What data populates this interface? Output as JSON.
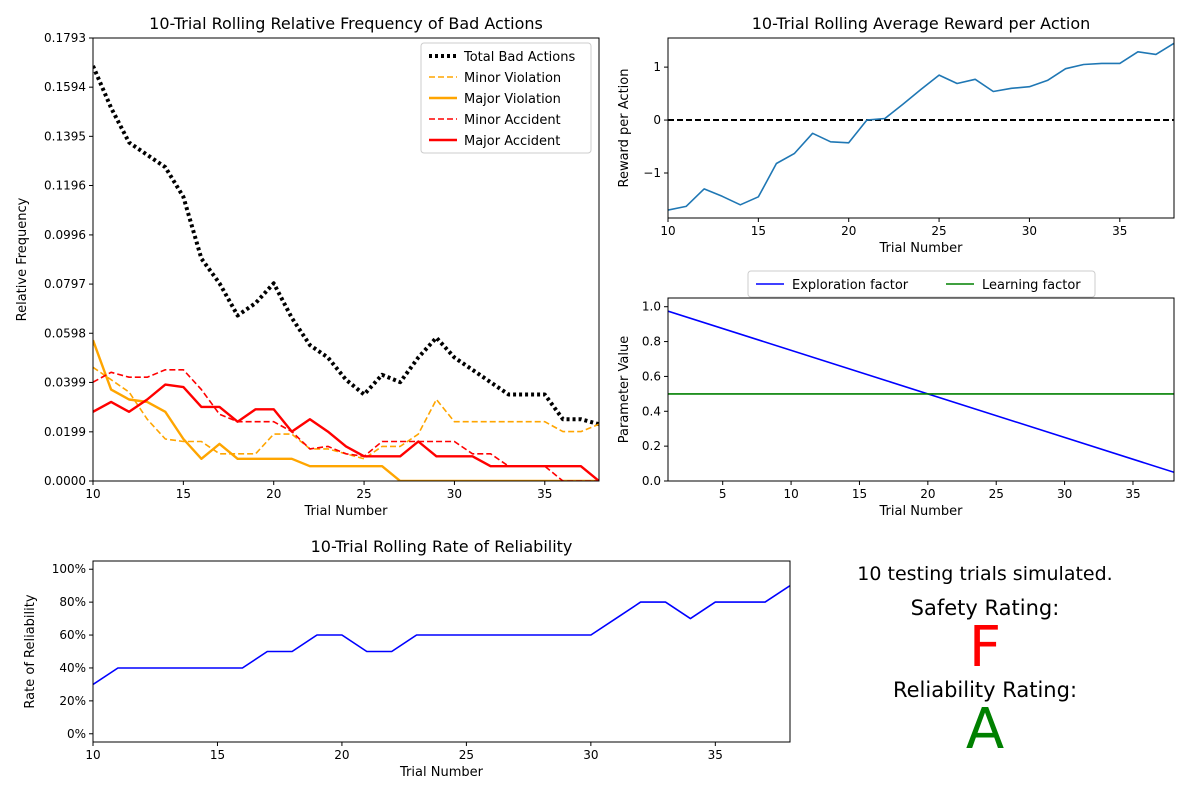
{
  "chart_data": [
    {
      "id": "bad",
      "type": "line",
      "title": "10-Trial Rolling Relative Frequency of Bad Actions",
      "xlabel": "Trial Number",
      "ylabel": "Relative Frequency",
      "xlim": [
        10,
        38
      ],
      "ylim": [
        0,
        0.1793
      ],
      "xticks": [
        10,
        15,
        20,
        25,
        30,
        35
      ],
      "yticks": [
        0.0,
        0.0199,
        0.0399,
        0.0598,
        0.0797,
        0.0996,
        0.1196,
        0.1395,
        0.1594,
        0.1793
      ],
      "ytick_labels": [
        "0.0000",
        "0.0199",
        "0.0399",
        "0.0598",
        "0.0797",
        "0.0996",
        "0.1196",
        "0.1395",
        "0.1594",
        "0.1793"
      ],
      "legend_position": "top-right",
      "x": [
        10,
        11,
        12,
        13,
        14,
        15,
        16,
        17,
        18,
        19,
        20,
        21,
        22,
        23,
        24,
        25,
        26,
        27,
        28,
        29,
        30,
        31,
        32,
        33,
        34,
        35,
        36,
        37,
        38
      ],
      "series": [
        {
          "name": "Total Bad Actions",
          "color": "#000000",
          "style": "dotted",
          "values": [
            0.168,
            0.151,
            0.137,
            0.132,
            0.127,
            0.115,
            0.09,
            0.08,
            0.067,
            0.072,
            0.08,
            0.066,
            0.055,
            0.05,
            0.041,
            0.035,
            0.043,
            0.04,
            0.05,
            0.058,
            0.05,
            0.045,
            0.04,
            0.035,
            0.035,
            0.035,
            0.025,
            0.025,
            0.023
          ]
        },
        {
          "name": "Minor Violation",
          "color": "#ffa500",
          "style": "dashed",
          "values": [
            0.046,
            0.041,
            0.036,
            0.025,
            0.017,
            0.016,
            0.016,
            0.011,
            0.011,
            0.011,
            0.019,
            0.019,
            0.013,
            0.013,
            0.011,
            0.009,
            0.014,
            0.014,
            0.019,
            0.033,
            0.024,
            0.024,
            0.024,
            0.024,
            0.024,
            0.024,
            0.02,
            0.02,
            0.023
          ]
        },
        {
          "name": "Major Violation",
          "color": "#ffa500",
          "style": "solid",
          "values": [
            0.057,
            0.037,
            0.033,
            0.032,
            0.028,
            0.017,
            0.009,
            0.015,
            0.009,
            0.009,
            0.009,
            0.009,
            0.006,
            0.006,
            0.006,
            0.006,
            0.006,
            0.0,
            0.0,
            0.0,
            0.0,
            0.0,
            0.0,
            0.0,
            0.0,
            0.0,
            0.0,
            0.0,
            0.0
          ]
        },
        {
          "name": "Minor Accident",
          "color": "#ff0000",
          "style": "dashed",
          "values": [
            0.04,
            0.044,
            0.042,
            0.042,
            0.045,
            0.045,
            0.037,
            0.027,
            0.024,
            0.024,
            0.024,
            0.02,
            0.013,
            0.014,
            0.011,
            0.01,
            0.016,
            0.016,
            0.016,
            0.016,
            0.016,
            0.011,
            0.011,
            0.006,
            0.006,
            0.006,
            0.0,
            0.0,
            0.0
          ]
        },
        {
          "name": "Major Accident",
          "color": "#ff0000",
          "style": "solid",
          "values": [
            0.028,
            0.032,
            0.028,
            0.033,
            0.039,
            0.038,
            0.03,
            0.03,
            0.024,
            0.029,
            0.029,
            0.02,
            0.025,
            0.02,
            0.014,
            0.01,
            0.01,
            0.01,
            0.016,
            0.01,
            0.01,
            0.01,
            0.006,
            0.006,
            0.006,
            0.006,
            0.006,
            0.006,
            0.0
          ]
        }
      ]
    },
    {
      "id": "reward",
      "type": "line",
      "title": "10-Trial Rolling Average Reward per Action",
      "xlabel": "Trial Number",
      "ylabel": "Reward per Action",
      "xlim": [
        10,
        38
      ],
      "ylim": [
        -1.85,
        1.55
      ],
      "xticks": [
        10,
        15,
        20,
        25,
        30,
        35
      ],
      "yticks": [
        -1,
        0,
        1
      ],
      "reference_line": {
        "y": 0,
        "color": "#000000",
        "style": "dashed"
      },
      "x": [
        10,
        11,
        12,
        13,
        14,
        15,
        16,
        17,
        18,
        19,
        20,
        21,
        22,
        23,
        24,
        25,
        26,
        27,
        28,
        29,
        30,
        31,
        32,
        33,
        34,
        35,
        36,
        37,
        38
      ],
      "series": [
        {
          "color": "#1f77b4",
          "values": [
            -1.7,
            -1.63,
            -1.3,
            -1.44,
            -1.6,
            -1.45,
            -0.82,
            -0.63,
            -0.25,
            -0.41,
            -0.43,
            0.0,
            0.03,
            0.3,
            0.58,
            0.85,
            0.69,
            0.77,
            0.54,
            0.6,
            0.63,
            0.75,
            0.97,
            1.05,
            1.07,
            1.07,
            1.29,
            1.24,
            1.45
          ]
        }
      ]
    },
    {
      "id": "params",
      "type": "line",
      "xlabel": "Trial Number",
      "ylabel": "Parameter Value",
      "xlim": [
        1,
        38
      ],
      "ylim": [
        0,
        1.05
      ],
      "xticks": [
        5,
        10,
        15,
        20,
        25,
        30,
        35
      ],
      "yticks": [
        0.0,
        0.2,
        0.4,
        0.6,
        0.8,
        1.0
      ],
      "ytick_labels": [
        "0.0",
        "0.2",
        "0.4",
        "0.6",
        "0.8",
        "1.0"
      ],
      "legend_position": "above",
      "x": [
        1,
        38
      ],
      "series": [
        {
          "name": "Exploration factor",
          "color": "#0000ff",
          "values": [
            0.975,
            0.05
          ]
        },
        {
          "name": "Learning factor",
          "color": "#008000",
          "values": [
            0.5,
            0.5
          ]
        }
      ]
    },
    {
      "id": "rel",
      "type": "line",
      "title": "10-Trial Rolling Rate of Reliability",
      "xlabel": "Trial Number",
      "ylabel": "Rate of Reliability",
      "xlim": [
        10,
        38
      ],
      "ylim": [
        -5,
        105
      ],
      "xticks": [
        10,
        15,
        20,
        25,
        30,
        35
      ],
      "yticks": [
        0,
        20,
        40,
        60,
        80,
        100
      ],
      "ytick_labels": [
        "0%",
        "20%",
        "40%",
        "60%",
        "80%",
        "100%"
      ],
      "x": [
        10,
        11,
        12,
        13,
        14,
        15,
        16,
        17,
        18,
        19,
        20,
        21,
        22,
        23,
        24,
        25,
        26,
        27,
        28,
        29,
        30,
        31,
        32,
        33,
        34,
        35,
        36,
        37,
        38
      ],
      "series": [
        {
          "color": "#0000ff",
          "values": [
            30,
            40,
            40,
            40,
            40,
            40,
            40,
            50,
            50,
            60,
            60,
            50,
            50,
            60,
            60,
            60,
            60,
            60,
            60,
            60,
            60,
            70,
            80,
            80,
            70,
            80,
            80,
            80,
            90
          ]
        }
      ]
    }
  ],
  "summary": {
    "trials_text": "10 testing trials simulated.",
    "safety_label": "Safety Rating:",
    "safety_grade": "F",
    "safety_color": "#ff0000",
    "reliability_label": "Reliability Rating:",
    "reliability_grade": "A",
    "reliability_color": "#008000"
  }
}
